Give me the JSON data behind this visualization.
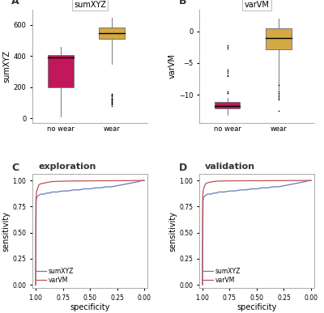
{
  "panel_A_title": "sumXYZ",
  "panel_B_title": "varVM",
  "panel_C_title": "exploration",
  "panel_D_title": "validation",
  "box_color_nowear": "#C2185B",
  "box_color_wear": "#D4A843",
  "panel_A": {
    "nowear": {
      "q1": 200,
      "median": 390,
      "q3": 405,
      "whisker_low": 10,
      "whisker_high": 460,
      "outliers": []
    },
    "wear": {
      "q1": 510,
      "median": 545,
      "q3": 585,
      "whisker_low": 350,
      "whisker_high": 645,
      "outliers": [
        80,
        90,
        95,
        100,
        105,
        110,
        115,
        120,
        125,
        130,
        140,
        150,
        155,
        160
      ]
    }
  },
  "panel_B": {
    "nowear": {
      "q1": -12.2,
      "median": -11.8,
      "q3": -11.2,
      "whisker_low": -13.2,
      "whisker_high": -10.5,
      "outliers": [
        -2.2,
        -2.5,
        -2.7,
        -6.0,
        -6.3,
        -6.6,
        -6.9,
        -7.1,
        -9.5,
        -9.7,
        -9.8
      ]
    },
    "wear": {
      "q1": -2.8,
      "median": -1.0,
      "q3": 0.5,
      "whisker_low": -9.2,
      "whisker_high": 2.0,
      "outliers": [
        -8.5,
        -9.5,
        -9.8,
        -10.0,
        -10.2,
        -10.5,
        -10.8,
        -12.5
      ]
    }
  },
  "roc_C_sumXYZ": {
    "x": [
      1.0,
      0.995,
      0.99,
      0.97,
      0.95,
      0.92,
      0.9,
      0.87,
      0.85,
      0.8,
      0.75,
      0.7,
      0.65,
      0.6,
      0.55,
      0.5,
      0.45,
      0.4,
      0.35,
      0.3,
      0.25,
      0.2,
      0.15,
      0.1,
      0.05,
      0.02,
      0.0
    ],
    "y": [
      0.0,
      0.8,
      0.84,
      0.86,
      0.87,
      0.87,
      0.88,
      0.88,
      0.89,
      0.89,
      0.9,
      0.9,
      0.91,
      0.91,
      0.92,
      0.92,
      0.93,
      0.93,
      0.94,
      0.94,
      0.95,
      0.96,
      0.97,
      0.98,
      0.99,
      1.0,
      1.0
    ]
  },
  "roc_C_varVM": {
    "x": [
      1.0,
      0.999,
      0.998,
      0.995,
      0.99,
      0.98,
      0.97,
      0.95,
      0.9,
      0.85,
      0.7,
      0.5,
      0.3,
      0.1,
      0.05,
      0.02,
      0.0
    ],
    "y": [
      0.0,
      0.65,
      0.8,
      0.86,
      0.9,
      0.93,
      0.96,
      0.97,
      0.98,
      0.99,
      0.995,
      0.997,
      0.998,
      0.999,
      1.0,
      1.0,
      1.0
    ]
  },
  "roc_D_sumXYZ": {
    "x": [
      1.0,
      0.995,
      0.99,
      0.97,
      0.95,
      0.92,
      0.9,
      0.87,
      0.85,
      0.8,
      0.75,
      0.7,
      0.65,
      0.6,
      0.55,
      0.5,
      0.45,
      0.4,
      0.35,
      0.3,
      0.25,
      0.2,
      0.15,
      0.1,
      0.05,
      0.02,
      0.0
    ],
    "y": [
      0.0,
      0.8,
      0.84,
      0.86,
      0.87,
      0.87,
      0.88,
      0.88,
      0.89,
      0.89,
      0.9,
      0.9,
      0.91,
      0.91,
      0.92,
      0.92,
      0.93,
      0.93,
      0.94,
      0.94,
      0.95,
      0.96,
      0.97,
      0.98,
      0.99,
      1.0,
      1.0
    ]
  },
  "roc_D_varVM": {
    "x": [
      1.0,
      0.999,
      0.998,
      0.995,
      0.99,
      0.98,
      0.97,
      0.95,
      0.9,
      0.85,
      0.7,
      0.5,
      0.3,
      0.1,
      0.05,
      0.02,
      0.0
    ],
    "y": [
      0.0,
      0.7,
      0.84,
      0.88,
      0.92,
      0.95,
      0.97,
      0.98,
      0.99,
      0.995,
      0.997,
      0.998,
      0.999,
      1.0,
      1.0,
      1.0,
      1.0
    ]
  },
  "line_color_sumXYZ": "#6878B8",
  "line_color_varVM": "#C05050",
  "bg_color": "#FFFFFF",
  "spine_color": "#AAAAAA",
  "text_color": "#333333"
}
